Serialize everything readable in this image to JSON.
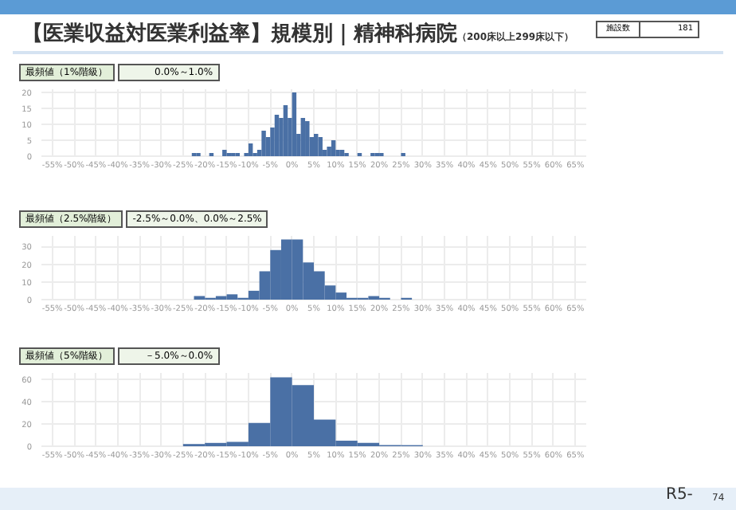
{
  "chart_data": [
    {
      "type": "histogram",
      "title": "【医業収益対医業利益率】規模別｜精神科病院",
      "subtitle": "（200床以上299床以下）",
      "annotations": [
        "最頻値（1%階級）",
        "0.0%～1.0%",
        "施設数",
        "181",
        "R5-",
        "74"
      ],
      "bins": [
        -23,
        -22,
        -21,
        -20,
        -19,
        -18,
        -17,
        -16,
        -15,
        -14,
        -13,
        -12,
        -11,
        -10,
        -9,
        -8,
        -7,
        -6,
        -5,
        -4,
        -3,
        -2,
        -1,
        0,
        1,
        2,
        3,
        4,
        5,
        6,
        7,
        8,
        9,
        10,
        11,
        12,
        13,
        14,
        15,
        16,
        17,
        18,
        19,
        20,
        21,
        22,
        23,
        24,
        25,
        26
      ],
      "values": [
        1,
        1,
        0,
        0,
        1,
        0,
        0,
        2,
        1,
        1,
        1,
        0,
        1,
        4,
        1,
        2,
        8,
        6,
        9,
        13,
        12,
        16,
        12,
        20,
        7,
        12,
        11,
        6,
        7,
        6,
        2,
        3,
        5,
        2,
        2,
        1,
        0,
        0,
        1,
        0,
        0,
        1,
        1,
        1,
        0,
        0,
        0,
        0,
        1
      ],
      "color": "#4a70a5",
      "xlim": [
        -57.5,
        67.5
      ],
      "xticks": [
        {
          "value": -55,
          "label": "-55%"
        },
        {
          "value": -50,
          "label": "-50%"
        },
        {
          "value": -45,
          "label": "-45%"
        },
        {
          "value": -40,
          "label": "-40%"
        },
        {
          "value": -35,
          "label": "-35%"
        },
        {
          "value": -30,
          "label": "-30%"
        },
        {
          "value": -25,
          "label": "-25%"
        },
        {
          "value": -20,
          "label": "-20%"
        },
        {
          "value": -15,
          "label": "-15%"
        },
        {
          "value": -10,
          "label": "-10%"
        },
        {
          "value": -5,
          "label": "-5%"
        },
        {
          "value": 0,
          "label": "0%"
        },
        {
          "value": 5,
          "label": "5%"
        },
        {
          "value": 10,
          "label": "10%"
        },
        {
          "value": 15,
          "label": "15%"
        },
        {
          "value": 20,
          "label": "20%"
        },
        {
          "value": 25,
          "label": "25%"
        },
        {
          "value": 30,
          "label": "30%"
        },
        {
          "value": 35,
          "label": "35%"
        },
        {
          "value": 40,
          "label": "40%"
        },
        {
          "value": 45,
          "label": "45%"
        },
        {
          "value": 50,
          "label": "50%"
        },
        {
          "value": 55,
          "label": "55%"
        },
        {
          "value": 60,
          "label": "60%"
        },
        {
          "value": 65,
          "label": "65%"
        }
      ],
      "ylim": [
        0,
        21
      ],
      "yticks": [
        0,
        5,
        10,
        15,
        20
      ],
      "grid": true
    },
    {
      "type": "histogram",
      "annotations": [
        "最頻値（2.5%階級）",
        "-2.5%～0.0%、0.0%～2.5%"
      ],
      "bins": [
        -22.5,
        -20,
        -17.5,
        -15,
        -12.5,
        -10,
        -7.5,
        -5,
        -2.5,
        0,
        2.5,
        5,
        7.5,
        10,
        12.5,
        15,
        17.5,
        20,
        22.5,
        25,
        27.5
      ],
      "values": [
        2,
        1,
        2,
        3,
        1,
        5,
        16,
        28,
        34,
        34,
        21,
        16,
        8,
        4,
        1,
        1,
        2,
        1,
        0,
        1
      ],
      "color": "#4a70a5",
      "xlim": [
        -57.5,
        67.5
      ],
      "xticks": [
        {
          "value": -55,
          "label": "-55%"
        },
        {
          "value": -50,
          "label": "-50%"
        },
        {
          "value": -45,
          "label": "-45%"
        },
        {
          "value": -40,
          "label": "-40%"
        },
        {
          "value": -35,
          "label": "-35%"
        },
        {
          "value": -30,
          "label": "-30%"
        },
        {
          "value": -25,
          "label": "-25%"
        },
        {
          "value": -20,
          "label": "-20%"
        },
        {
          "value": -15,
          "label": "-15%"
        },
        {
          "value": -10,
          "label": "-10%"
        },
        {
          "value": -5,
          "label": "-5%"
        },
        {
          "value": 0,
          "label": "0%"
        },
        {
          "value": 5,
          "label": "5%"
        },
        {
          "value": 10,
          "label": "10%"
        },
        {
          "value": 15,
          "label": "15%"
        },
        {
          "value": 20,
          "label": "20%"
        },
        {
          "value": 25,
          "label": "25%"
        },
        {
          "value": 30,
          "label": "30%"
        },
        {
          "value": 35,
          "label": "35%"
        },
        {
          "value": 40,
          "label": "40%"
        },
        {
          "value": 45,
          "label": "45%"
        },
        {
          "value": 50,
          "label": "50%"
        },
        {
          "value": 55,
          "label": "55%"
        },
        {
          "value": 60,
          "label": "60%"
        },
        {
          "value": 65,
          "label": "65%"
        }
      ],
      "ylim": [
        0,
        36
      ],
      "yticks": [
        0,
        10,
        20,
        30
      ],
      "grid": true
    },
    {
      "type": "histogram",
      "annotations": [
        "最頻値（5%階級）",
        "－5.0%～0.0%"
      ],
      "bins": [
        -25,
        -20,
        -15,
        -10,
        -5,
        0,
        5,
        10,
        15,
        20,
        25,
        30
      ],
      "values": [
        2,
        3,
        4,
        21,
        62,
        55,
        24,
        5,
        3,
        1,
        1
      ],
      "color": "#4a70a5",
      "xlim": [
        -57.5,
        67.5
      ],
      "xticks": [
        {
          "value": -55,
          "label": "-55%"
        },
        {
          "value": -50,
          "label": "-50%"
        },
        {
          "value": -45,
          "label": "-45%"
        },
        {
          "value": -40,
          "label": "-40%"
        },
        {
          "value": -35,
          "label": "-35%"
        },
        {
          "value": -30,
          "label": "-30%"
        },
        {
          "value": -25,
          "label": "-25%"
        },
        {
          "value": -20,
          "label": "-20%"
        },
        {
          "value": -15,
          "label": "-15%"
        },
        {
          "value": -10,
          "label": "-10%"
        },
        {
          "value": -5,
          "label": "-5%"
        },
        {
          "value": 0,
          "label": "0%"
        },
        {
          "value": 5,
          "label": "5%"
        },
        {
          "value": 10,
          "label": "10%"
        },
        {
          "value": 15,
          "label": "15%"
        },
        {
          "value": 20,
          "label": "20%"
        },
        {
          "value": 25,
          "label": "25%"
        },
        {
          "value": 30,
          "label": "30%"
        },
        {
          "value": 35,
          "label": "35%"
        },
        {
          "value": 40,
          "label": "40%"
        },
        {
          "value": 45,
          "label": "45%"
        },
        {
          "value": 50,
          "label": "50%"
        },
        {
          "value": 55,
          "label": "55%"
        },
        {
          "value": 60,
          "label": "60%"
        },
        {
          "value": 65,
          "label": "65%"
        }
      ],
      "ylim": [
        0,
        66
      ],
      "yticks": [
        0,
        20,
        40,
        60
      ],
      "grid": true
    }
  ]
}
